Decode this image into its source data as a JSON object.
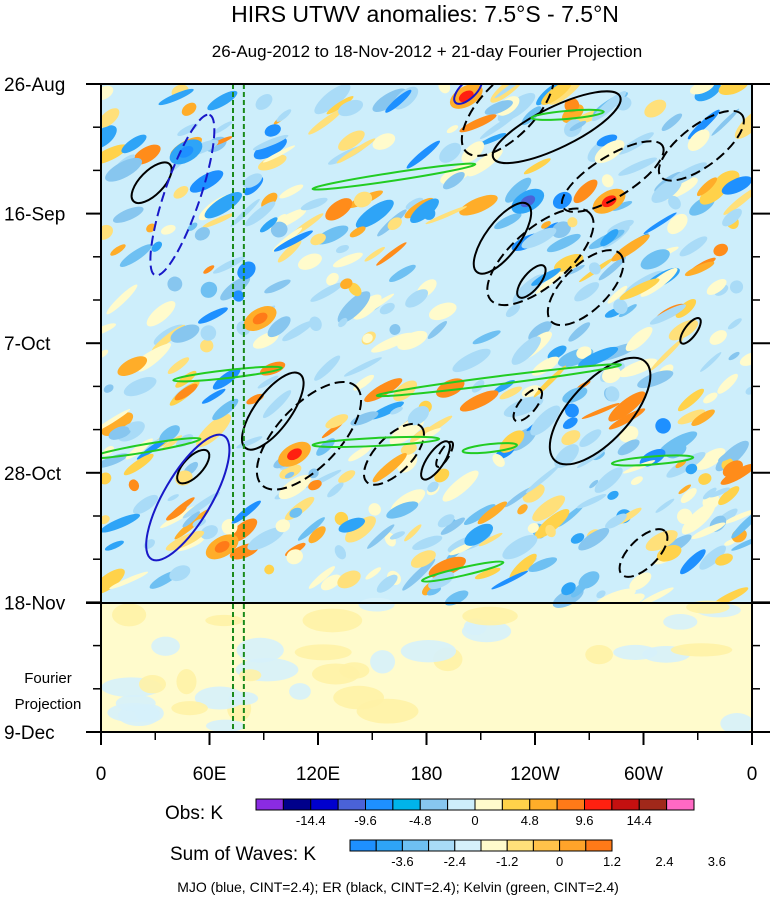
{
  "chart_data": {
    "type": "heatmap",
    "title": "HIRS UTWV anomalies: 7.5°S - 7.5°N",
    "subtitle": "26-Aug-2012 to 18-Nov-2012 + 21-day Fourier Projection",
    "xlabel": "",
    "ylabel": "",
    "x_ticks": [
      "0",
      "60E",
      "120E",
      "180",
      "120W",
      "60W",
      "0"
    ],
    "x_tick_longitudes_east": [
      0,
      60,
      120,
      180,
      240,
      300,
      360
    ],
    "y_ticks": [
      "26-Aug",
      "16-Sep",
      "7-Oct",
      "28-Oct",
      "18-Nov",
      "9-Dec"
    ],
    "y_tick_days": [
      0,
      21,
      42,
      63,
      84,
      105
    ],
    "obs_end_day": 84,
    "projection_label": [
      "Fourier",
      "Projection"
    ],
    "reference_lines_longitude_east": [
      73,
      79
    ],
    "colorbar_obs": {
      "label": "Obs: K",
      "tick_labels": [
        "-14.4",
        "-9.6",
        "-4.8",
        "0",
        "4.8",
        "9.6",
        "14.4"
      ],
      "colors": [
        "#8a2be2",
        "#00008b",
        "#0000cd",
        "#4a62d8",
        "#1e90ff",
        "#00b4ea",
        "#87c6ef",
        "#cdeefb",
        "#fffbcc",
        "#ffd24a",
        "#ffad29",
        "#ff7a18",
        "#ff2010",
        "#c41010",
        "#a0281a",
        "#ff69c4"
      ]
    },
    "colorbar_waves": {
      "label": "Sum of Waves: K",
      "tick_labels": [
        "-3.6",
        "-2.4",
        "-1.2",
        "0",
        "1.2",
        "2.4",
        "3.6"
      ],
      "colors": [
        "#1e90ff",
        "#2ea4f7",
        "#6ec0f2",
        "#a9dbf7",
        "#d6f1fb",
        "#fffbcc",
        "#ffe07a",
        "#ffc24a",
        "#ffa32a",
        "#ff7a18"
      ]
    },
    "contours": {
      "mjo": [
        {
          "lon": 45,
          "day": 18,
          "len_days": 26,
          "len_lon": 30,
          "sign": "neg"
        },
        {
          "lon": 48,
          "day": 67,
          "len_days": 20,
          "len_lon": 40,
          "sign": "pos"
        },
        {
          "lon": 203,
          "day": 1,
          "len_days": 4,
          "len_lon": 14,
          "sign": "pos"
        }
      ],
      "er": [
        {
          "lon": 28,
          "day": 16,
          "len_days": 6,
          "len_lon": 20,
          "sign": "pos"
        },
        {
          "lon": 225,
          "day": 4,
          "len_days": 14,
          "len_lon": 46,
          "sign": "neg"
        },
        {
          "lon": 252,
          "day": 7,
          "len_days": 10,
          "len_lon": 70,
          "sign": "pos"
        },
        {
          "lon": 283,
          "day": 15,
          "len_days": 10,
          "len_lon": 55,
          "sign": "neg"
        },
        {
          "lon": 332,
          "day": 10,
          "len_days": 10,
          "len_lon": 45,
          "sign": "neg"
        },
        {
          "lon": 222,
          "day": 25,
          "len_days": 11,
          "len_lon": 28,
          "sign": "pos"
        },
        {
          "lon": 243,
          "day": 28,
          "len_days": 14,
          "len_lon": 55,
          "sign": "neg"
        },
        {
          "lon": 238,
          "day": 32,
          "len_days": 5,
          "len_lon": 14,
          "sign": "pos"
        },
        {
          "lon": 268,
          "day": 33,
          "len_days": 11,
          "len_lon": 38,
          "sign": "neg"
        },
        {
          "lon": 326,
          "day": 40,
          "len_days": 4,
          "len_lon": 10,
          "sign": "pos"
        },
        {
          "lon": 95,
          "day": 53,
          "len_days": 12,
          "len_lon": 30,
          "sign": "pos"
        },
        {
          "lon": 115,
          "day": 57,
          "len_days": 16,
          "len_lon": 52,
          "sign": "neg"
        },
        {
          "lon": 162,
          "day": 60,
          "len_days": 9,
          "len_lon": 30,
          "sign": "neg"
        },
        {
          "lon": 185,
          "day": 61,
          "len_days": 6,
          "len_lon": 14,
          "sign": "pos"
        },
        {
          "lon": 236,
          "day": 52,
          "len_days": 5,
          "len_lon": 14,
          "sign": "neg"
        },
        {
          "lon": 276,
          "day": 53,
          "len_days": 16,
          "len_lon": 50,
          "sign": "pos"
        },
        {
          "lon": 51,
          "day": 62,
          "len_days": 5,
          "len_lon": 16,
          "sign": "pos"
        },
        {
          "lon": 190,
          "day": 60,
          "len_days": 4,
          "len_lon": 8,
          "sign": "neg"
        },
        {
          "lon": 300,
          "day": 76,
          "len_days": 7,
          "len_lon": 24,
          "sign": "neg"
        }
      ],
      "kelvin": [
        {
          "lon": 162,
          "day": 15,
          "len_days": 4,
          "len_lon": 90
        },
        {
          "lon": 258,
          "day": 5,
          "len_days": 1,
          "len_lon": 40
        },
        {
          "lon": 220,
          "day": 48,
          "len_days": 5,
          "len_lon": 135
        },
        {
          "lon": 70,
          "day": 47,
          "len_days": 2,
          "len_lon": 60
        },
        {
          "lon": 25,
          "day": 59,
          "len_days": 3,
          "len_lon": 60
        },
        {
          "lon": 152,
          "day": 58,
          "len_days": 1,
          "len_lon": 70
        },
        {
          "lon": 305,
          "day": 61,
          "len_days": 1,
          "len_lon": 45
        },
        {
          "lon": 215,
          "day": 59,
          "len_days": 1,
          "len_lon": 30
        },
        {
          "lon": 200,
          "day": 79,
          "len_days": 3,
          "len_lon": 45
        }
      ]
    },
    "hotspots": [
      {
        "lon": 202,
        "day": 2,
        "value": 12
      },
      {
        "lon": 281,
        "day": 19,
        "value": 12
      },
      {
        "lon": 107,
        "day": 60,
        "value": 10
      },
      {
        "lon": 88,
        "day": 38,
        "value": 8
      },
      {
        "lon": 236,
        "day": 19,
        "value": -12
      },
      {
        "lon": 47,
        "day": 11,
        "value": -8
      },
      {
        "lon": 67,
        "day": 75,
        "value": 5
      }
    ]
  },
  "legend_caption": "MJO (blue, CINT=2.4); ER (black, CINT=2.4); Kelvin (green, CINT=2.4)",
  "colors": {
    "mjo": "#1818c8",
    "er": "#000000",
    "kelvin": "#22cc22",
    "reference_line": "#1a8a1a",
    "projection_bg": "#fffbcc"
  }
}
